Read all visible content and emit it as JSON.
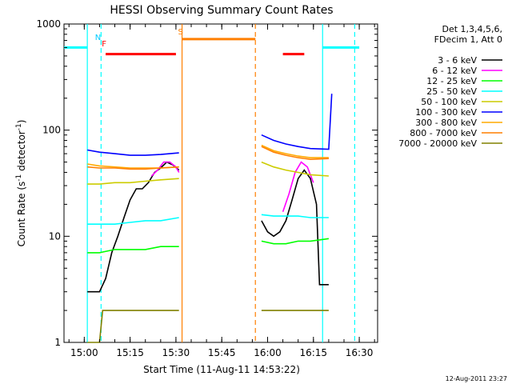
{
  "chart_data": {
    "type": "line",
    "title": "HESSI Observing Summary Count Rates",
    "xlabel": "Start Time (11-Aug-11 14:53:22)",
    "ylabel_parts": [
      "Count Rate (s",
      "-1",
      " detector",
      "-1",
      ")"
    ],
    "yscale": "log",
    "ylim": [
      1,
      1000
    ],
    "xlim": [
      "14:53:22",
      "16:36:00"
    ],
    "y_ticks": [
      {
        "value": 1,
        "label": "1"
      },
      {
        "value": 10,
        "label": "10"
      },
      {
        "value": 100,
        "label": "100"
      },
      {
        "value": 1000,
        "label": "1000"
      }
    ],
    "x_ticks": [
      {
        "value": "15:00",
        "label": "15:00"
      },
      {
        "value": "15:15",
        "label": "15:15"
      },
      {
        "value": "15:30",
        "label": "15:30"
      },
      {
        "value": "15:45",
        "label": "15:45"
      },
      {
        "value": "16:00",
        "label": "16:00"
      },
      {
        "value": "16:15",
        "label": "16:15"
      },
      {
        "value": "16:30",
        "label": "16:30"
      }
    ],
    "legend_header": [
      "Det 1,3,4,5,6,",
      "FDecim 1, Att 0"
    ],
    "legend_placement": "right",
    "footer_date": "12-Aug-2011 23:27",
    "series": [
      {
        "name": "3 - 6 keV",
        "color": "#000000",
        "seg1": [
          [
            "15:01:00",
            3
          ],
          [
            "15:05:00",
            3
          ],
          [
            "15:07:00",
            4
          ],
          [
            "15:09:00",
            7
          ],
          [
            "15:11:00",
            10
          ],
          [
            "15:13:00",
            15
          ],
          [
            "15:15:00",
            22
          ],
          [
            "15:17:00",
            28
          ],
          [
            "15:19:00",
            28
          ],
          [
            "15:21:00",
            32
          ],
          [
            "15:23:00",
            40
          ],
          [
            "15:25:00",
            44
          ],
          [
            "15:27:00",
            50
          ],
          [
            "15:29:00",
            47
          ],
          [
            "15:31:00",
            42
          ]
        ],
        "seg2": [
          [
            "15:58:00",
            14
          ],
          [
            "16:00:00",
            11
          ],
          [
            "16:02:00",
            10
          ],
          [
            "16:04:00",
            11
          ],
          [
            "16:06:00",
            14
          ],
          [
            "16:08:00",
            22
          ],
          [
            "16:10:00",
            35
          ],
          [
            "16:12:00",
            42
          ],
          [
            "16:14:00",
            35
          ],
          [
            "16:16:00",
            20
          ],
          [
            "16:17:00",
            3.5
          ],
          [
            "16:19:00",
            3.5
          ],
          [
            "16:20:00",
            3.5
          ]
        ]
      },
      {
        "name": "6 - 12 keV",
        "color": "#ff00ff",
        "seg1": [
          [
            "15:22:00",
            37
          ],
          [
            "15:24:00",
            42
          ],
          [
            "15:26:00",
            50
          ],
          [
            "15:28:00",
            50
          ],
          [
            "15:30:00",
            45
          ],
          [
            "15:31:00",
            40
          ]
        ],
        "seg2": [
          [
            "16:05:00",
            17
          ],
          [
            "16:07:00",
            25
          ],
          [
            "16:09:00",
            40
          ],
          [
            "16:11:00",
            50
          ],
          [
            "16:13:00",
            45
          ],
          [
            "16:15:00",
            32
          ]
        ]
      },
      {
        "name": "12 - 25 keV",
        "color": "#00ff00",
        "seg1": [
          [
            "15:01:00",
            7
          ],
          [
            "15:05:00",
            7
          ],
          [
            "15:10:00",
            7.5
          ],
          [
            "15:15:00",
            7.5
          ],
          [
            "15:20:00",
            7.5
          ],
          [
            "15:25:00",
            8
          ],
          [
            "15:31:00",
            8
          ]
        ],
        "seg2": [
          [
            "15:58:00",
            9
          ],
          [
            "16:02:00",
            8.5
          ],
          [
            "16:06:00",
            8.5
          ],
          [
            "16:10:00",
            9
          ],
          [
            "16:14:00",
            9
          ],
          [
            "16:20:00",
            9.5
          ]
        ]
      },
      {
        "name": "25 - 50 keV",
        "color": "#00ffff",
        "seg1": [
          [
            "15:01:00",
            13
          ],
          [
            "15:05:00",
            13
          ],
          [
            "15:10:00",
            13
          ],
          [
            "15:15:00",
            13.5
          ],
          [
            "15:20:00",
            14
          ],
          [
            "15:25:00",
            14
          ],
          [
            "15:31:00",
            15
          ]
        ],
        "seg2": [
          [
            "15:58:00",
            16
          ],
          [
            "16:02:00",
            15.5
          ],
          [
            "16:06:00",
            15.5
          ],
          [
            "16:10:00",
            15.5
          ],
          [
            "16:14:00",
            15
          ],
          [
            "16:20:00",
            15
          ]
        ]
      },
      {
        "name": "50 - 100 keV",
        "color": "#cccc00",
        "seg1": [
          [
            "15:01:00",
            31
          ],
          [
            "15:05:00",
            31
          ],
          [
            "15:10:00",
            32
          ],
          [
            "15:15:00",
            32
          ],
          [
            "15:20:00",
            33
          ],
          [
            "15:25:00",
            34
          ],
          [
            "15:31:00",
            35
          ]
        ],
        "seg2": [
          [
            "15:58:00",
            50
          ],
          [
            "16:02:00",
            45
          ],
          [
            "16:06:00",
            42
          ],
          [
            "16:10:00",
            40
          ],
          [
            "16:14:00",
            38
          ],
          [
            "16:20:00",
            37
          ]
        ]
      },
      {
        "name": "100 - 300 keV",
        "color": "#0000ff",
        "seg1": [
          [
            "15:01:00",
            65
          ],
          [
            "15:05:00",
            62
          ],
          [
            "15:10:00",
            60
          ],
          [
            "15:15:00",
            58
          ],
          [
            "15:20:00",
            58
          ],
          [
            "15:25:00",
            59
          ],
          [
            "15:31:00",
            61
          ]
        ],
        "seg2": [
          [
            "15:58:00",
            90
          ],
          [
            "16:02:00",
            80
          ],
          [
            "16:06:00",
            74
          ],
          [
            "16:10:00",
            70
          ],
          [
            "16:14:00",
            67
          ],
          [
            "16:20:00",
            66
          ],
          [
            "16:21:00",
            220
          ]
        ]
      },
      {
        "name": "300 - 800 keV",
        "color": "#ffaa00",
        "seg1": [
          [
            "15:01:00",
            48
          ],
          [
            "15:05:00",
            46
          ],
          [
            "15:10:00",
            45
          ],
          [
            "15:15:00",
            44
          ],
          [
            "15:20:00",
            44
          ],
          [
            "15:25:00",
            44
          ],
          [
            "15:31:00",
            45
          ]
        ],
        "seg2": [
          [
            "15:58:00",
            72
          ],
          [
            "16:02:00",
            64
          ],
          [
            "16:06:00",
            60
          ],
          [
            "16:10:00",
            57
          ],
          [
            "16:14:00",
            55
          ],
          [
            "16:20:00",
            55
          ]
        ]
      },
      {
        "name": "800 - 7000 keV",
        "color": "#ff7f00",
        "seg1": [
          [
            "15:01:00",
            45
          ],
          [
            "15:05:00",
            44
          ],
          [
            "15:10:00",
            44
          ],
          [
            "15:15:00",
            43
          ],
          [
            "15:20:00",
            43
          ],
          [
            "15:25:00",
            44
          ],
          [
            "15:31:00",
            45
          ]
        ],
        "seg2": [
          [
            "15:58:00",
            70
          ],
          [
            "16:02:00",
            62
          ],
          [
            "16:06:00",
            58
          ],
          [
            "16:10:00",
            55
          ],
          [
            "16:14:00",
            53
          ],
          [
            "16:20:00",
            54
          ]
        ]
      },
      {
        "name": "7000 - 20000 keV",
        "color": "#808000",
        "seg1": [
          [
            "15:01:00",
            1
          ],
          [
            "15:05:00",
            1
          ],
          [
            "15:06:00",
            2
          ],
          [
            "15:15:00",
            2
          ],
          [
            "15:31:00",
            2
          ]
        ],
        "seg2": [
          [
            "15:58:00",
            2
          ],
          [
            "16:10:00",
            2
          ],
          [
            "16:20:00",
            2
          ]
        ]
      }
    ],
    "segment_red_color": "#ff0000",
    "flags": [
      {
        "label": "N",
        "color": "#00ccff",
        "at": "15:04:30"
      },
      {
        "label": "F",
        "color": "#ff0000",
        "at": "15:06:30"
      },
      {
        "label": "S",
        "color": "#ff7f00",
        "at": "15:31:30"
      }
    ],
    "bars": [
      {
        "name": "night",
        "color": "#00ffff",
        "from": "14:53:22",
        "to": "15:01:00",
        "level": 600
      },
      {
        "name": "night",
        "color": "#00ffff",
        "from": "16:18:00",
        "to": "16:30:00",
        "level": 600
      },
      {
        "name": "flare",
        "color": "#ff0000",
        "from": "15:07:00",
        "to": "15:30:00",
        "level": 520
      },
      {
        "name": "flare",
        "color": "#ff0000",
        "from": "16:05:00",
        "to": "16:12:00",
        "level": 520
      },
      {
        "name": "saa",
        "color": "#ff7f00",
        "from": "15:32:00",
        "to": "15:56:00",
        "level": 720
      }
    ],
    "vlines": [
      {
        "color": "#00ffff",
        "at": "15:01:00",
        "style": "solid"
      },
      {
        "color": "#00ffff",
        "at": "15:05:30",
        "style": "dashed"
      },
      {
        "color": "#ff7f00",
        "at": "15:32:00",
        "style": "solid"
      },
      {
        "color": "#ff7f00",
        "at": "15:56:00",
        "style": "dashed"
      },
      {
        "color": "#00ffff",
        "at": "16:18:00",
        "style": "solid"
      },
      {
        "color": "#00ffff",
        "at": "16:28:30",
        "style": "dashed"
      }
    ]
  }
}
